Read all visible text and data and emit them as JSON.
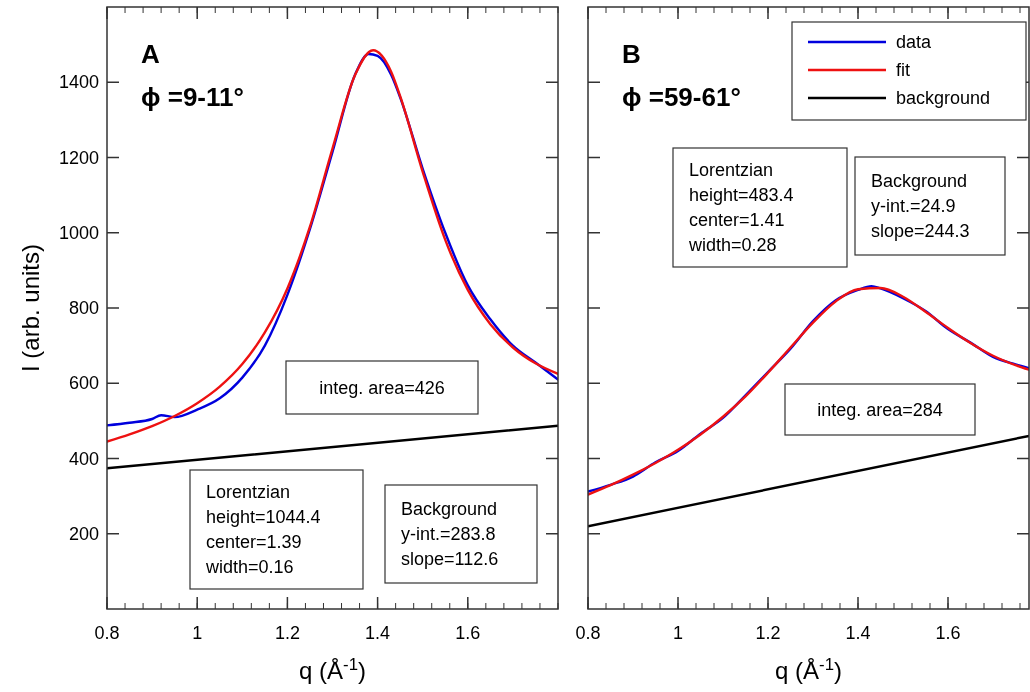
{
  "chart_data": [
    {
      "type": "line",
      "title": "A",
      "subtitle": "ϕ =9-11°",
      "xlabel": "q (Å$^{-1}$)",
      "ylabel": "I (arb. units)",
      "xlim": [
        0.8,
        1.8
      ],
      "xticks": [
        0.8,
        1,
        1.2,
        1.4,
        1.6
      ],
      "ylim": [
        0,
        1600
      ],
      "yticks": [
        200,
        400,
        600,
        800,
        1000,
        1200,
        1400
      ],
      "legend": false,
      "annotations": [
        "integ. area=426",
        "Lorentzian\nheight=1044.4\ncenter=1.39\nwidth=0.16",
        "Background\ny-int.=283.8\nslope=112.6"
      ],
      "series": [
        {
          "color": "#0000dd",
          "x": [
            0.8,
            0.85,
            0.9,
            0.92,
            0.95,
            1.0,
            1.05,
            1.1,
            1.15,
            1.2,
            1.25,
            1.3,
            1.35,
            1.38,
            1.4,
            1.43,
            1.45,
            1.5,
            1.55,
            1.6,
            1.65,
            1.7,
            1.75,
            1.8
          ],
          "values": [
            488,
            495,
            505,
            515,
            510,
            530,
            560,
            615,
            700,
            835,
            1010,
            1215,
            1420,
            1475,
            1470,
            1420,
            1360,
            1170,
            1000,
            860,
            770,
            700,
            655,
            610
          ]
        },
        {
          "color": "#ee1111",
          "x": [
            0.8,
            0.85,
            0.9,
            0.95,
            1.0,
            1.05,
            1.1,
            1.15,
            1.2,
            1.25,
            1.3,
            1.35,
            1.39,
            1.43,
            1.45,
            1.5,
            1.55,
            1.6,
            1.65,
            1.7,
            1.75,
            1.8
          ],
          "values": [
            445,
            464,
            486,
            513,
            547,
            591,
            651,
            735,
            852,
            1016,
            1224,
            1419,
            1485,
            1428,
            1363,
            1162,
            981,
            848,
            757,
            695,
            653,
            625
          ]
        },
        {
          "color": "#000000",
          "x": [
            0.8,
            1.8
          ],
          "values": [
            374,
            487
          ]
        }
      ]
    },
    {
      "type": "line",
      "title": "B",
      "subtitle": "ϕ =59-61°",
      "xlabel": "q (Å$^{-1}$)",
      "xlim": [
        0.8,
        1.78
      ],
      "xticks": [
        0.8,
        1,
        1.2,
        1.4,
        1.6
      ],
      "ylim": [
        0,
        1600
      ],
      "yticks": [
        200,
        400,
        600,
        800,
        1000,
        1200,
        1400
      ],
      "tick_labels": "x",
      "legend": "top right",
      "annotations": [
        "Lorentzian\nheight=483.4\ncenter=1.41\nwidth=0.28",
        "Background\ny-int.=24.9\nslope=244.3",
        "integ. area=284"
      ],
      "series": [
        {
          "name": "data",
          "color": "#0000dd",
          "x": [
            0.8,
            0.85,
            0.9,
            0.95,
            1.0,
            1.05,
            1.1,
            1.15,
            1.2,
            1.25,
            1.3,
            1.35,
            1.4,
            1.43,
            1.45,
            1.5,
            1.55,
            1.6,
            1.65,
            1.7,
            1.75,
            1.78
          ],
          "values": [
            312,
            330,
            352,
            390,
            420,
            466,
            508,
            568,
            630,
            692,
            765,
            820,
            848,
            858,
            852,
            826,
            792,
            744,
            708,
            670,
            650,
            640
          ]
        },
        {
          "name": "fit",
          "color": "#ee1111",
          "x": [
            0.8,
            0.85,
            0.9,
            0.95,
            1.0,
            1.05,
            1.1,
            1.15,
            1.2,
            1.25,
            1.3,
            1.35,
            1.4,
            1.45,
            1.5,
            1.55,
            1.6,
            1.65,
            1.7,
            1.75,
            1.78
          ],
          "values": [
            304,
            329,
            357,
            388,
            423,
            464,
            511,
            565,
            628,
            695,
            761,
            817,
            850,
            853,
            830,
            790,
            747,
            707,
            673,
            648,
            636
          ]
        },
        {
          "name": "background",
          "color": "#000000",
          "x": [
            0.8,
            1.78
          ],
          "values": [
            220,
            460
          ]
        }
      ]
    }
  ]
}
